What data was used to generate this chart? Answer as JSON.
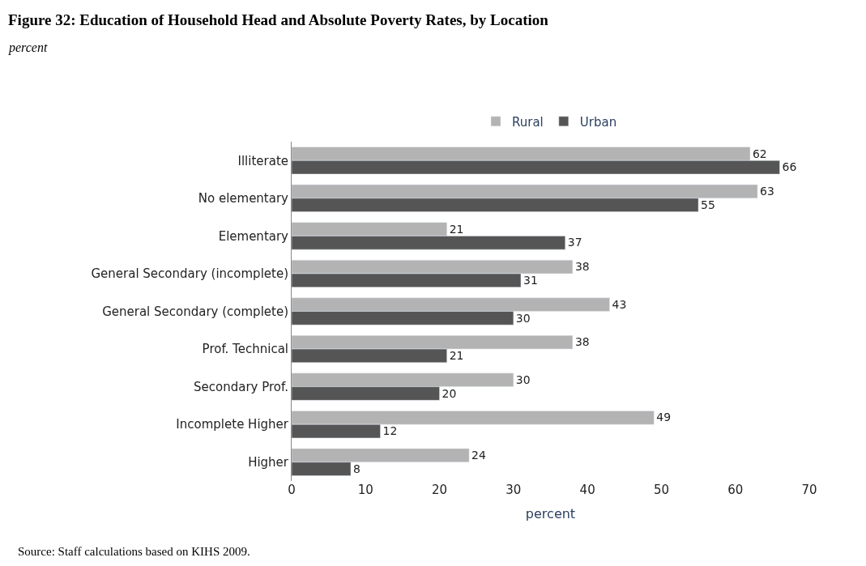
{
  "chart_data": {
    "type": "bar",
    "orientation": "horizontal",
    "title": "Figure 32: Education of Household Head and Absolute Poverty Rates, by Location",
    "subtitle": "percent",
    "xlabel": "percent",
    "categories": [
      "Illiterate",
      "No elementary",
      "Elementary",
      "General Secondary (incomplete)",
      "General Secondary (complete)",
      "Prof. Technical",
      "Secondary Prof.",
      "Incomplete Higher",
      "Higher"
    ],
    "series": [
      {
        "name": "Rural",
        "color": "#b3b3b3",
        "values": [
          62,
          63,
          21,
          38,
          43,
          38,
          30,
          49,
          24
        ]
      },
      {
        "name": "Urban",
        "color": "#555555",
        "values": [
          66,
          55,
          37,
          31,
          30,
          21,
          20,
          12,
          8
        ]
      }
    ],
    "xlim": [
      0,
      70
    ],
    "xticks": [
      0,
      10,
      20,
      30,
      40,
      50,
      60,
      70
    ],
    "legend": "top",
    "data_labels": true,
    "annotations": [
      "Source: Staff calculations based on KIHS 2009."
    ]
  }
}
